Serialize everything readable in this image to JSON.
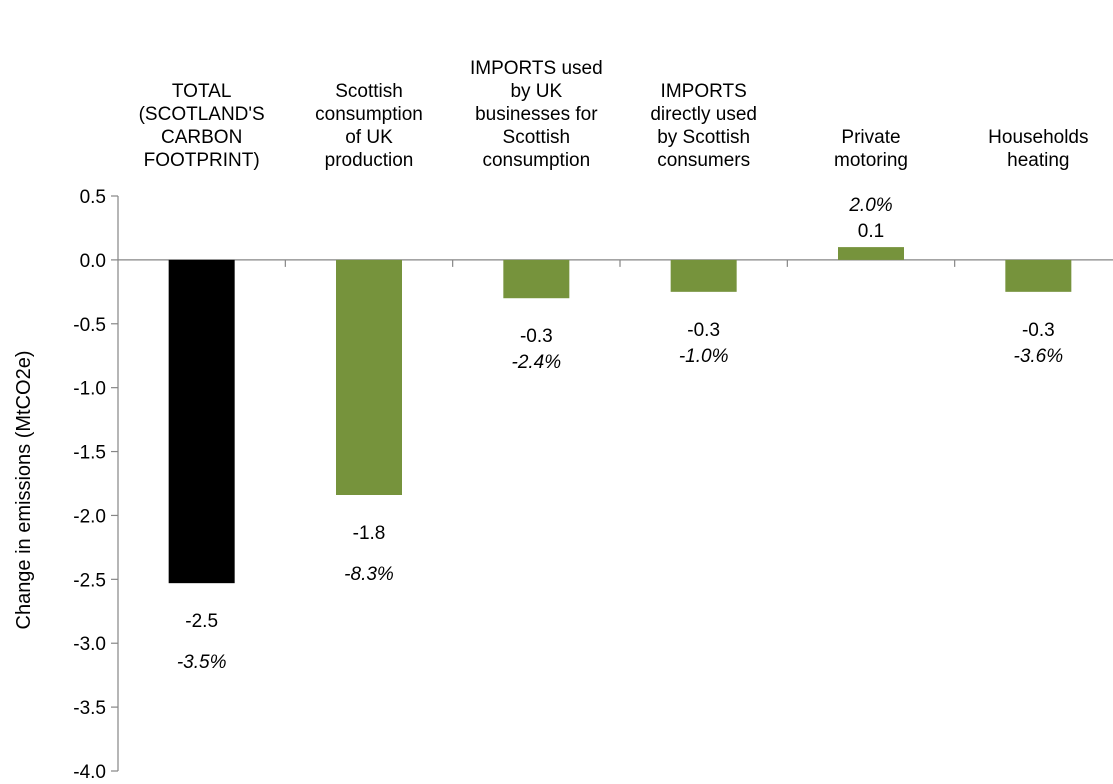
{
  "chart_data": {
    "type": "bar",
    "title": "",
    "xlabel": "",
    "ylabel": "Change in emissions (MtCO2e)",
    "ylim": [
      -4.0,
      0.5
    ],
    "yticks": [
      "0.5",
      "0.0",
      "-0.5",
      "-1.0",
      "-1.5",
      "-2.0",
      "-2.5",
      "-3.0",
      "-3.5",
      "-4.0"
    ],
    "grid": false,
    "legend": "none",
    "categories": [
      {
        "lines": [
          "TOTAL",
          "(SCOTLAND'S",
          "CARBON",
          "FOOTPRINT)"
        ]
      },
      {
        "lines": [
          "Scottish",
          "consumption",
          "of UK",
          "production"
        ]
      },
      {
        "lines": [
          "IMPORTS used",
          "by UK",
          "businesses for",
          "Scottish",
          "consumption"
        ]
      },
      {
        "lines": [
          "IMPORTS",
          "directly used",
          "by Scottish",
          "consumers"
        ]
      },
      {
        "lines": [
          "Private",
          "motoring"
        ]
      },
      {
        "lines": [
          "Households",
          "heating"
        ]
      }
    ],
    "values": [
      -2.53,
      -1.84,
      -0.3,
      -0.25,
      0.1,
      -0.25
    ],
    "value_labels": [
      "-2.5",
      "-1.8",
      "-0.3",
      "-0.3",
      "0.1",
      "-0.3"
    ],
    "percent_labels": [
      "-3.5%",
      "-8.3%",
      "-2.4%",
      "-1.0%",
      "2.0%",
      "-3.6%"
    ],
    "colors": [
      "#000000",
      "#76933c",
      "#76933c",
      "#76933c",
      "#76933c",
      "#76933c"
    ]
  }
}
